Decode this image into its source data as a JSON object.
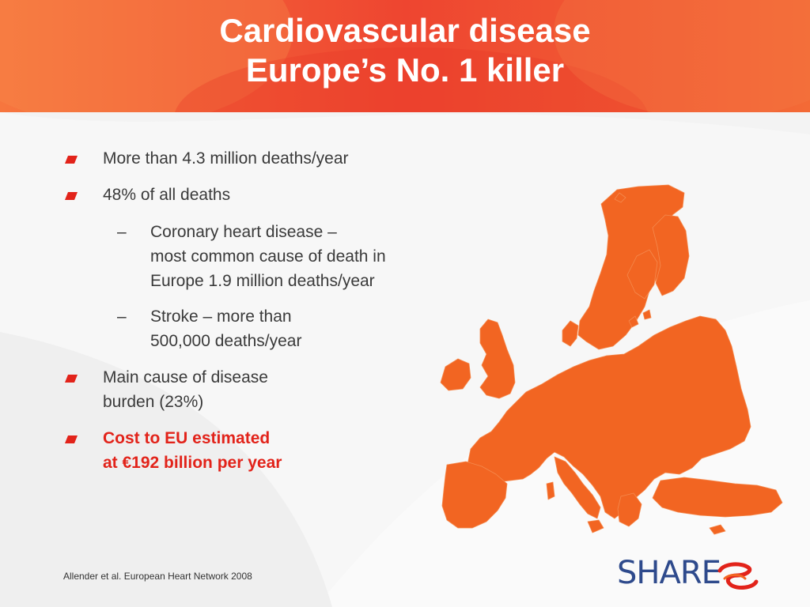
{
  "slide": {
    "title_line1": "Cardiovascular disease",
    "title_line2": "Europe’s No. 1 killer"
  },
  "bullets": [
    {
      "line1": "More than 4.3 million deaths/year",
      "line2": ""
    },
    {
      "line1": "48% of all deaths",
      "line2": ""
    },
    {
      "line1": "Main cause of disease",
      "line2": "burden (23%)"
    },
    {
      "line1": "Cost to EU estimated",
      "line2": "at €192 billion per year"
    }
  ],
  "sub_bullets": [
    {
      "dash": "–",
      "line1": "Coronary heart disease –",
      "line2": "most common cause of death in",
      "line3": "Europe 1.9 million deaths/year"
    },
    {
      "dash": "–",
      "line1": "Stroke – more than",
      "line2": "500,000 deaths/year"
    }
  ],
  "citation": "Allender et al. European Heart Network 2008",
  "logo": {
    "text": "SHARE"
  },
  "colors": {
    "header": "#ef4b32",
    "accent_red": "#e2231a",
    "map_orange": "#f26522",
    "logo_blue": "#2e4a8c"
  },
  "icons": {
    "bullet": "red-slanted-bullet",
    "map": "europe-map"
  }
}
